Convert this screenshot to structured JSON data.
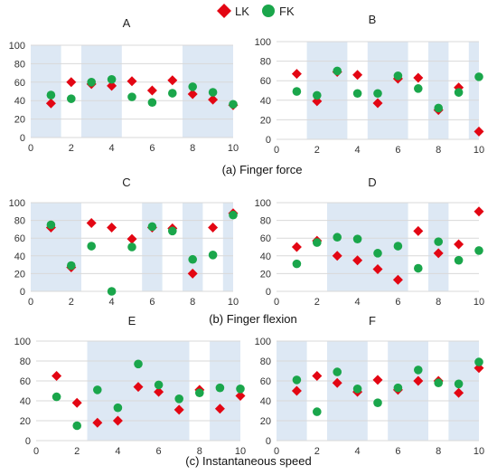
{
  "legend": {
    "items": [
      {
        "label": "LK",
        "marker": "diamond",
        "color": "#e30613"
      },
      {
        "label": "FK",
        "marker": "circle",
        "color": "#1aa64b"
      }
    ]
  },
  "captions": [
    "(a) Finger force",
    "(b) Finger flexion",
    "(c) Instantaneous speed"
  ],
  "band_color": "#dde8f4",
  "chart_data": [
    {
      "type": "scatter",
      "title": "A",
      "xlim": [
        0,
        10
      ],
      "ylim": [
        0,
        100
      ],
      "xticks": [
        0,
        2,
        4,
        6,
        8,
        10
      ],
      "yticks": [
        0,
        20,
        40,
        60,
        80,
        100
      ],
      "grid": true,
      "bands": [
        [
          0,
          1.5
        ],
        [
          2.5,
          4.5
        ],
        [
          7.5,
          10
        ]
      ],
      "series": [
        {
          "name": "LK",
          "x": [
            1,
            2,
            3,
            4,
            5,
            6,
            7,
            8,
            9,
            10
          ],
          "y": [
            37,
            60,
            58,
            56,
            61,
            51,
            62,
            47,
            41,
            35
          ]
        },
        {
          "name": "FK",
          "x": [
            1,
            2,
            3,
            4,
            5,
            6,
            7,
            8,
            9,
            10
          ],
          "y": [
            46,
            42,
            60,
            63,
            44,
            38,
            48,
            55,
            49,
            36
          ]
        }
      ]
    },
    {
      "type": "scatter",
      "title": "B",
      "xlim": [
        0,
        10
      ],
      "ylim": [
        0,
        100
      ],
      "xticks": [
        0,
        2,
        4,
        6,
        8,
        10
      ],
      "yticks": [
        0,
        20,
        40,
        60,
        80,
        100
      ],
      "grid": true,
      "bands": [
        [
          1.5,
          3.5
        ],
        [
          4.5,
          6.5
        ],
        [
          7.5,
          8.5
        ],
        [
          9.5,
          10
        ]
      ],
      "series": [
        {
          "name": "LK",
          "x": [
            1,
            2,
            3,
            4,
            5,
            6,
            7,
            8,
            9,
            10
          ],
          "y": [
            67,
            39,
            69,
            66,
            37,
            62,
            63,
            30,
            53,
            8
          ]
        },
        {
          "name": "FK",
          "x": [
            1,
            2,
            3,
            4,
            5,
            6,
            7,
            8,
            9,
            10
          ],
          "y": [
            49,
            45,
            70,
            47,
            47,
            65,
            52,
            32,
            48,
            64
          ]
        }
      ]
    },
    {
      "type": "scatter",
      "title": "C",
      "xlim": [
        0,
        10
      ],
      "ylim": [
        0,
        100
      ],
      "xticks": [
        0,
        2,
        4,
        6,
        8,
        10
      ],
      "yticks": [
        0,
        20,
        40,
        60,
        80,
        100
      ],
      "grid": true,
      "bands": [
        [
          0,
          2.5
        ],
        [
          5.5,
          6.5
        ],
        [
          7.5,
          8.5
        ],
        [
          9.5,
          10
        ]
      ],
      "series": [
        {
          "name": "LK",
          "x": [
            1,
            2,
            3,
            4,
            5,
            6,
            7,
            8,
            9,
            10
          ],
          "y": [
            72,
            27,
            77,
            72,
            59,
            72,
            71,
            20,
            72,
            88
          ]
        },
        {
          "name": "FK",
          "x": [
            1,
            2,
            3,
            4,
            5,
            6,
            7,
            8,
            9,
            10
          ],
          "y": [
            75,
            29,
            51,
            0,
            50,
            73,
            68,
            36,
            41,
            86
          ]
        }
      ]
    },
    {
      "type": "scatter",
      "title": "D",
      "xlim": [
        0,
        10
      ],
      "ylim": [
        0,
        100
      ],
      "xticks": [
        0,
        2,
        4,
        6,
        8,
        10
      ],
      "yticks": [
        0,
        20,
        40,
        60,
        80,
        100
      ],
      "grid": true,
      "bands": [
        [
          2.5,
          6.5
        ],
        [
          7.5,
          8.5
        ]
      ],
      "series": [
        {
          "name": "LK",
          "x": [
            1,
            2,
            3,
            4,
            5,
            6,
            7,
            8,
            9,
            10
          ],
          "y": [
            50,
            57,
            40,
            35,
            25,
            13,
            68,
            43,
            53,
            90
          ]
        },
        {
          "name": "FK",
          "x": [
            1,
            2,
            3,
            4,
            5,
            6,
            7,
            8,
            9,
            10
          ],
          "y": [
            31,
            55,
            61,
            59,
            43,
            51,
            26,
            56,
            35,
            46
          ]
        }
      ]
    },
    {
      "type": "scatter",
      "title": "E",
      "xlim": [
        0,
        10
      ],
      "ylim": [
        0,
        100
      ],
      "xticks": [
        0,
        2,
        4,
        6,
        8,
        10
      ],
      "yticks": [
        0,
        20,
        40,
        60,
        80,
        100
      ],
      "grid": true,
      "bands": [
        [
          2.5,
          7.5
        ],
        [
          8.5,
          10
        ]
      ],
      "series": [
        {
          "name": "LK",
          "x": [
            1,
            2,
            3,
            4,
            5,
            6,
            7,
            8,
            9,
            10
          ],
          "y": [
            65,
            38,
            18,
            20,
            54,
            49,
            31,
            51,
            32,
            45
          ]
        },
        {
          "name": "FK",
          "x": [
            1,
            2,
            3,
            4,
            5,
            6,
            7,
            8,
            9,
            10
          ],
          "y": [
            44,
            15,
            51,
            33,
            77,
            56,
            42,
            48,
            53,
            52
          ]
        }
      ]
    },
    {
      "type": "scatter",
      "title": "F",
      "xlim": [
        0,
        10
      ],
      "ylim": [
        0,
        100
      ],
      "xticks": [
        0,
        2,
        4,
        6,
        8,
        10
      ],
      "yticks": [
        0,
        20,
        40,
        60,
        80,
        100
      ],
      "grid": true,
      "bands": [
        [
          0,
          1.5
        ],
        [
          2.5,
          4.5
        ],
        [
          5.5,
          7.5
        ],
        [
          8.5,
          10
        ]
      ],
      "series": [
        {
          "name": "LK",
          "x": [
            1,
            2,
            3,
            4,
            5,
            6,
            7,
            8,
            9,
            10
          ],
          "y": [
            50,
            65,
            58,
            49,
            61,
            51,
            60,
            60,
            48,
            73
          ]
        },
        {
          "name": "FK",
          "x": [
            1,
            2,
            3,
            4,
            5,
            6,
            7,
            8,
            9,
            10
          ],
          "y": [
            61,
            29,
            69,
            52,
            38,
            53,
            71,
            58,
            57,
            79
          ]
        }
      ]
    }
  ]
}
